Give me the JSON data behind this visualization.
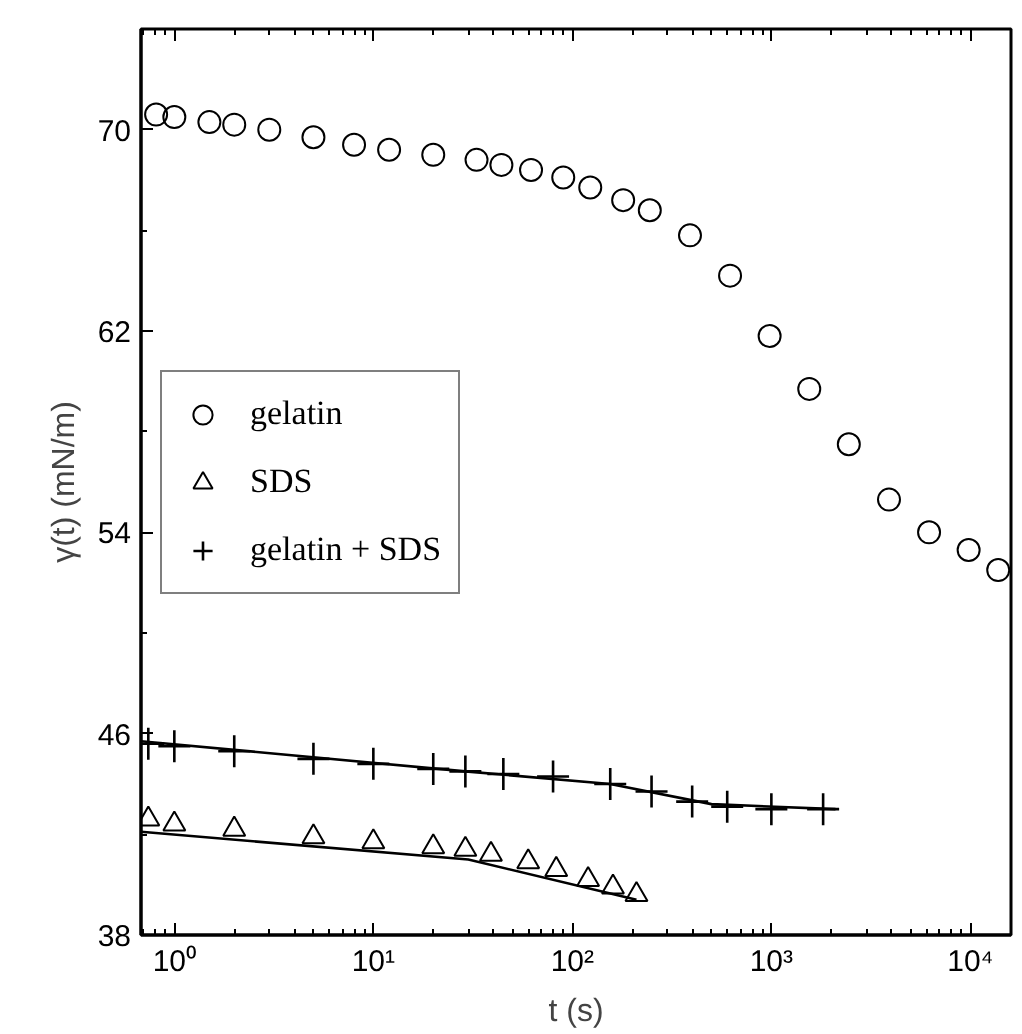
{
  "chart_data": {
    "type": "scatter",
    "xlabel": "t (s)",
    "ylabel": "γ(t) (mN/m)",
    "log": "x",
    "xlim": [
      0.68,
      16000
    ],
    "ylim": [
      38,
      74
    ],
    "xticks": [
      {
        "value": 1,
        "label": "10⁰"
      },
      {
        "value": 10,
        "label": "10¹"
      },
      {
        "value": 100,
        "label": "10²"
      },
      {
        "value": 1000,
        "label": "10³"
      },
      {
        "value": 10000,
        "label": "10⁴"
      }
    ],
    "yticks": [
      38,
      46,
      54,
      62,
      70
    ],
    "grid": false,
    "legend": "left",
    "series": [
      {
        "name": "gelatin",
        "marker": "circle",
        "color": "#000000",
        "x": [
          0.81,
          1,
          1.5,
          2,
          3,
          5,
          8,
          12,
          20,
          33,
          44,
          62,
          90,
          123,
          180,
          245,
          390,
          620,
          980,
          1550,
          2450,
          3900,
          6200,
          9800,
          13800
        ],
        "values": [
          70.6,
          70.5,
          70.3,
          70.2,
          70.0,
          69.7,
          69.4,
          69.2,
          69.0,
          68.8,
          68.6,
          68.4,
          68.1,
          67.7,
          67.2,
          66.8,
          65.8,
          64.2,
          61.8,
          59.7,
          57.5,
          55.3,
          54.0,
          53.3,
          52.5
        ]
      },
      {
        "name": "SDS",
        "marker": "triangle",
        "color": "#000000",
        "x": [
          0.74,
          1,
          2,
          5,
          10,
          20,
          29,
          39,
          60,
          83,
          120,
          160,
          210
        ],
        "values": [
          42.6,
          42.4,
          42.2,
          41.9,
          41.7,
          41.5,
          41.4,
          41.2,
          40.9,
          40.6,
          40.2,
          39.9,
          39.6
        ]
      },
      {
        "name": "gelatin + SDS",
        "marker": "cross",
        "color": "#000000",
        "x": [
          0.74,
          1,
          2,
          5,
          10,
          20,
          29,
          45,
          80,
          155,
          250,
          400,
          600,
          1000,
          1820
        ],
        "values": [
          45.6,
          45.5,
          45.3,
          45.0,
          44.8,
          44.6,
          44.5,
          44.4,
          44.3,
          44.0,
          43.7,
          43.3,
          43.1,
          43.0,
          43.0
        ]
      },
      {
        "type": "line",
        "color": "#000000",
        "x": [
          0.68,
          30,
          210
        ],
        "values": [
          42.1,
          41.0,
          39.4
        ]
      },
      {
        "type": "line",
        "color": "#000000",
        "x": [
          0.68,
          29,
          155,
          500,
          2100
        ],
        "values": [
          45.7,
          44.5,
          44.0,
          43.2,
          43.0
        ]
      }
    ]
  }
}
